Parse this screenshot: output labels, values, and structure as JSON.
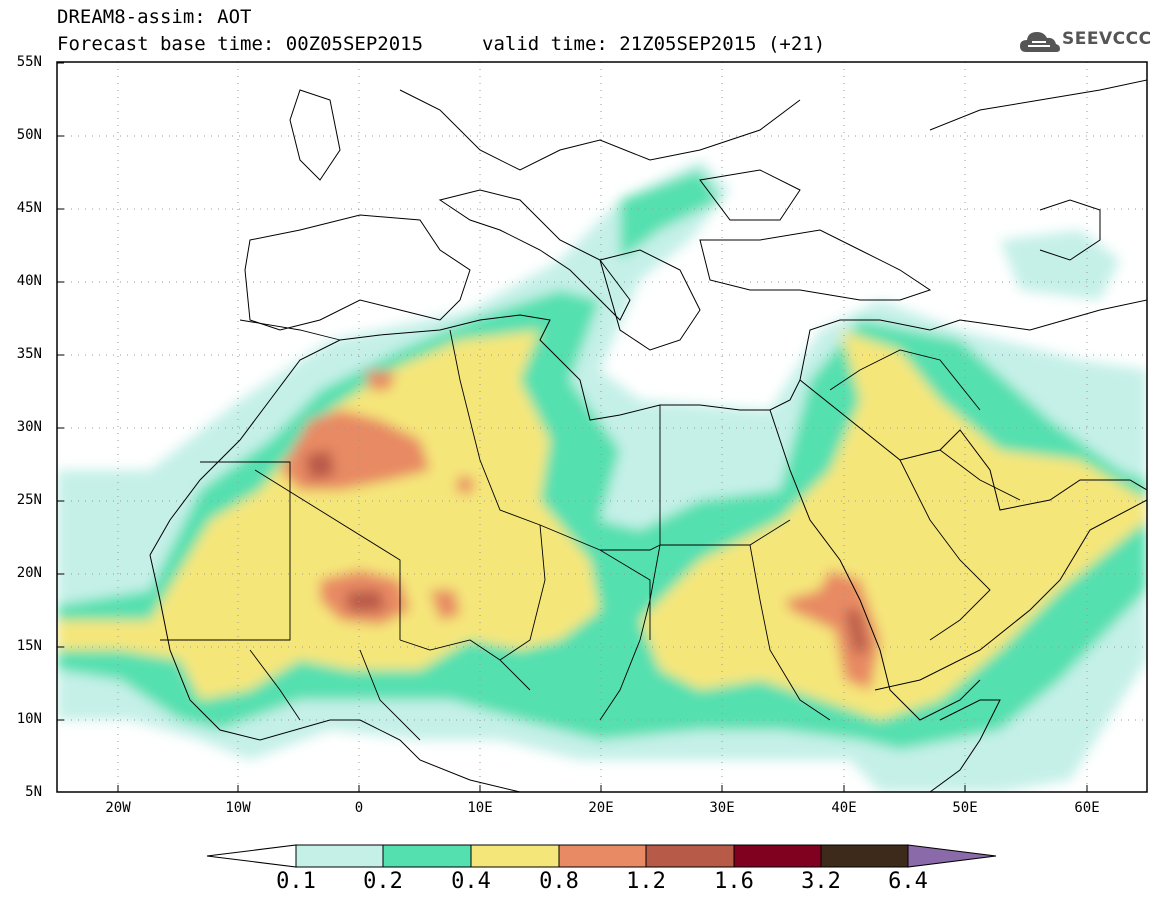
{
  "header": {
    "model_line": "DREAM8-assim: AOT",
    "base_time": "Forecast base time: 00Z05SEP2015",
    "valid_time": "valid time: 21Z05SEP2015 (+21)",
    "logo_text": "SEEVCCC"
  },
  "axes": {
    "latitudes": [
      "55N",
      "50N",
      "45N",
      "40N",
      "35N",
      "30N",
      "25N",
      "20N",
      "15N",
      "10N",
      "5N"
    ],
    "longitudes": [
      "20W",
      "10W",
      "0",
      "10E",
      "20E",
      "30E",
      "40E",
      "50E",
      "60E"
    ],
    "lat_range": [
      5,
      55
    ],
    "lon_range": [
      -25,
      65
    ]
  },
  "colorbar": {
    "thresholds": [
      "0.1",
      "0.2",
      "0.4",
      "0.8",
      "1.2",
      "1.6",
      "3.2",
      "6.4"
    ],
    "colors": [
      "#ffffff",
      "#c5f0e8",
      "#55e0b0",
      "#f5e67a",
      "#e88a64",
      "#b85a48",
      "#800020",
      "#3d2a1a",
      "#8a6aa8"
    ]
  },
  "colors": {
    "frame": "#000000",
    "grid": "#999999",
    "coast": "#000000"
  }
}
